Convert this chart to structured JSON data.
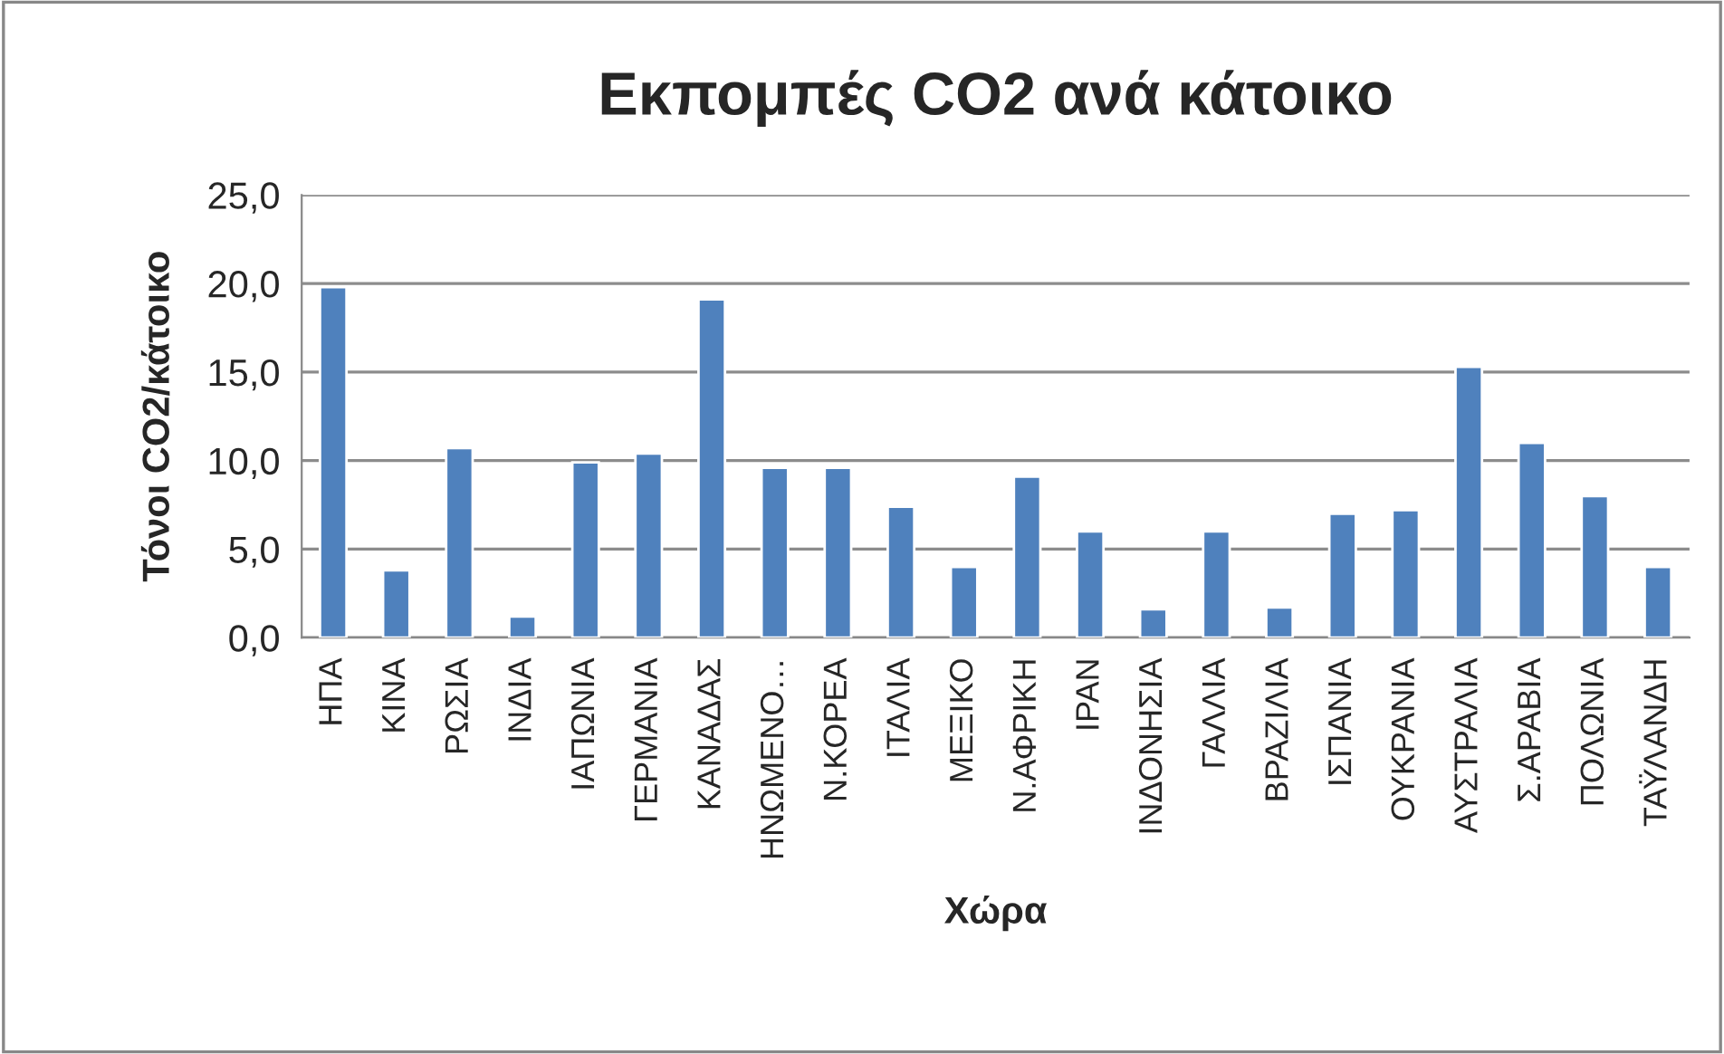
{
  "chart_data": {
    "type": "bar",
    "title": "Εκπομπές CO2 ανά κάτοικο",
    "xlabel": "Χώρα",
    "ylabel": "Τόνοι CO2/κάτοικο",
    "categories": [
      "ΗΠΑ",
      "ΚΙΝΑ",
      "ΡΩΣΙΑ",
      "ΙΝΔΙΑ",
      "ΙΑΠΩΝΙΑ",
      "ΓΕΡΜΑΝΙΑ",
      "ΚΑΝΑΔΑΣ",
      "ΗΝΩΜΕΝΟ…",
      "Ν.ΚΟΡΕΑ",
      "ΙΤΑΛΙΑ",
      "ΜΕΞΙΚΟ",
      "Ν.ΑΦΡΙΚΗ",
      "ΙΡΑΝ",
      "ΙΝΔΟΝΗΣΙΑ",
      "ΓΑΛΛΙΑ",
      "ΒΡΑΖΙΛΙΑ",
      "ΙΣΠΑΝΙΑ",
      "ΟΥΚΡΑΝΙΑ",
      "ΑΥΣΤΡΑΛΙΑ",
      "Σ.ΑΡΑΒΙΑ",
      "ΠΟΛΩΝΙΑ",
      "ΤΑΫΛΑΝΔΗ"
    ],
    "values": [
      19.8,
      3.8,
      10.7,
      1.2,
      9.9,
      10.4,
      19.1,
      9.6,
      9.6,
      7.4,
      4.0,
      9.1,
      6.0,
      1.6,
      6.0,
      1.7,
      7.0,
      7.2,
      15.3,
      11.0,
      8.0,
      4.0
    ],
    "color": "#4f81bd",
    "ylim": [
      0,
      25
    ],
    "yticks": [
      {
        "value": 0,
        "label": "0,0"
      },
      {
        "value": 5,
        "label": "5,0"
      },
      {
        "value": 10,
        "label": "10,0"
      },
      {
        "value": 15,
        "label": "15,0"
      },
      {
        "value": 20,
        "label": "20,0"
      },
      {
        "value": 25,
        "label": "25,0"
      }
    ],
    "grid": "y",
    "legend": false
  }
}
